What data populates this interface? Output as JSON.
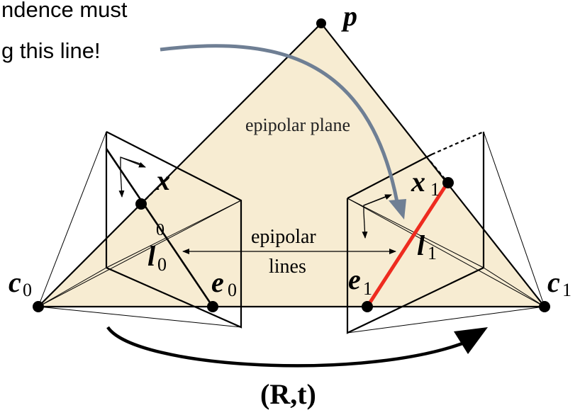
{
  "callout": {
    "line1": "ndence must",
    "line2": "g this line!"
  },
  "labels": {
    "p": "p",
    "epipolar_plane": "epipolar plane",
    "x0": "x",
    "x0_sub": "0",
    "x1": "x",
    "x1_sub": "1",
    "l0": "l",
    "l0_sub": "0",
    "l1": "l",
    "l1_sub": "1",
    "epipolar_lines_1": "epipolar",
    "epipolar_lines_2": "lines",
    "c0": "c",
    "c0_sub": "0",
    "c1": "c",
    "c1_sub": "1",
    "e0": "e",
    "e0_sub": "0",
    "e1": "e",
    "e1_sub": "1",
    "motion": "(R,t)"
  },
  "colors": {
    "plane_fill": "#f7ecd2",
    "epipolar_line_highlight": "#ee2b1f",
    "callout_arrow": "#6f7f94",
    "ink": "#000000"
  }
}
